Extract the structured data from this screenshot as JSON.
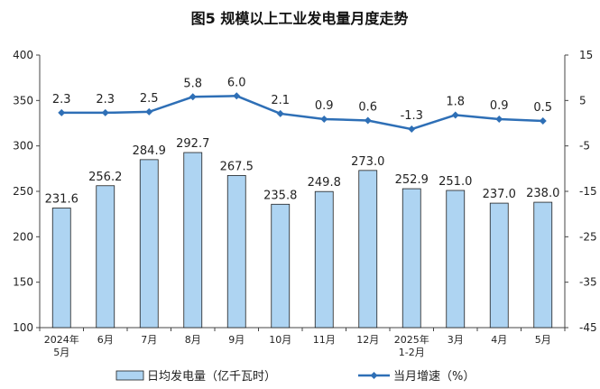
{
  "chart_data": {
    "type": "bar",
    "title": "图5  规模以上工业发电量月度走势",
    "categories": [
      "2024年\n5月",
      "6月",
      "7月",
      "8月",
      "9月",
      "10月",
      "11月",
      "12月",
      "2025年\n1-2月",
      "3月",
      "4月",
      "5月"
    ],
    "series": [
      {
        "name": "日均发电量（亿千瓦时）",
        "type": "bar",
        "axis": "left",
        "values": [
          231.6,
          256.2,
          284.9,
          292.7,
          267.5,
          235.8,
          249.8,
          273.0,
          252.9,
          251.0,
          237.0,
          238.0
        ],
        "labels": [
          "231.6",
          "256.2",
          "284.9",
          "292.7",
          "267.5",
          "235.8",
          "249.8",
          "273.0",
          "252.9",
          "251.0",
          "237.0",
          "238.0"
        ]
      },
      {
        "name": "当月增速（%）",
        "type": "line",
        "axis": "right",
        "values": [
          2.3,
          2.3,
          2.5,
          5.8,
          6.0,
          2.1,
          0.9,
          0.6,
          -1.3,
          1.8,
          0.9,
          0.5
        ],
        "labels": [
          "2.3",
          "2.3",
          "2.5",
          "5.8",
          "6.0",
          "2.1",
          "0.9",
          "0.6",
          "-1.3",
          "1.8",
          "0.9",
          "0.5"
        ]
      }
    ],
    "y_left": {
      "lim": [
        100,
        400
      ],
      "ticks": [
        "100",
        "150",
        "200",
        "250",
        "300",
        "350",
        "400"
      ]
    },
    "y_right": {
      "lim": [
        -45,
        15
      ],
      "ticks": [
        "-45",
        "-35",
        "-25",
        "-15",
        "-5",
        "5",
        "15"
      ]
    },
    "colors": {
      "bar_fill": "#aed4f2",
      "bar_stroke": "#1f1f1f",
      "line": "#2e6fb6",
      "axis": "#444444"
    },
    "legend_position": "bottom"
  }
}
